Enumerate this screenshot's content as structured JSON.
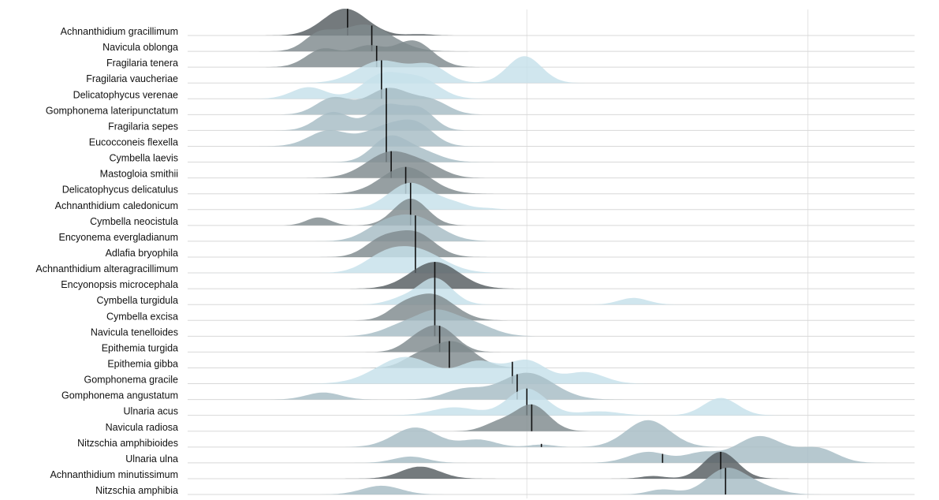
{
  "colors": {
    "light": "#c6e0ea",
    "mid": "#a6bcc4",
    "dark": "#7f8a8e",
    "darkest": "#555d60",
    "median": "#111111",
    "gridline": "#e3e3e3",
    "baseline": "#d8d8d8"
  },
  "chart_data": {
    "type": "ridgeline",
    "title": "",
    "xlabel": "",
    "ylabel": "",
    "grid": true,
    "x_gridlines": [
      70,
      128
    ],
    "xlim": [
      0,
      150
    ],
    "density_notation": "each series lists kernel density components as [center, width, relative height] on the shared x axis",
    "series": [
      {
        "name": "Achnanthidium gracillimum",
        "tone": "darkest",
        "median": 33,
        "components": [
          [
            32.5,
            4.5,
            1.0
          ],
          [
            48,
            2.5,
            0.05
          ]
        ]
      },
      {
        "name": "Navicula oblonga",
        "tone": "dark",
        "median": 38,
        "components": [
          [
            36.5,
            5.5,
            0.85
          ],
          [
            27,
            3.0,
            0.45
          ]
        ]
      },
      {
        "name": "Fragilaria tenera",
        "tone": "dark",
        "median": 39,
        "components": [
          [
            28,
            3.5,
            0.55
          ],
          [
            37,
            3.5,
            0.6
          ],
          [
            46.5,
            4.0,
            0.8
          ]
        ]
      },
      {
        "name": "Fragilaria vaucheriae",
        "tone": "light",
        "median": 40,
        "components": [
          [
            40,
            5.0,
            0.75
          ],
          [
            50,
            3.5,
            0.55
          ],
          [
            69.5,
            3.5,
            0.9
          ]
        ]
      },
      {
        "name": "Delicatophycus verenae",
        "tone": "light",
        "median": 40,
        "components": [
          [
            25,
            3.5,
            0.45
          ],
          [
            40,
            4.0,
            0.9
          ],
          [
            48,
            4.0,
            0.75
          ]
        ]
      },
      {
        "name": "Gomphonema lateripunctatum",
        "tone": "mid",
        "median": 41,
        "components": [
          [
            30,
            3.5,
            0.6
          ],
          [
            41.5,
            4.5,
            0.95
          ],
          [
            50.5,
            3.5,
            0.45
          ]
        ]
      },
      {
        "name": "Fragilaria sepes",
        "tone": "mid",
        "median": 41,
        "components": [
          [
            30,
            3.5,
            0.55
          ],
          [
            41,
            3.5,
            0.75
          ],
          [
            48,
            3.0,
            0.6
          ]
        ]
      },
      {
        "name": "Eucocconeis flexella",
        "tone": "mid",
        "median": 41,
        "components": [
          [
            29,
            4.0,
            0.65
          ],
          [
            41,
            4.5,
            0.8
          ],
          [
            47.5,
            3.5,
            0.75
          ]
        ]
      },
      {
        "name": "Cymbella laevis",
        "tone": "mid",
        "median": 41,
        "components": [
          [
            41.5,
            3.5,
            1.0
          ],
          [
            48,
            4.0,
            0.45
          ]
        ]
      },
      {
        "name": "Mastogloia smithii",
        "tone": "dark",
        "median": 42,
        "components": [
          [
            42,
            5.0,
            1.0
          ],
          [
            50,
            3.5,
            0.3
          ]
        ]
      },
      {
        "name": "Delicatophycus delicatulus",
        "tone": "dark",
        "median": 45,
        "components": [
          [
            45,
            5.0,
            1.0
          ]
        ]
      },
      {
        "name": "Achnanthidium caledonicum",
        "tone": "light",
        "median": 46,
        "components": [
          [
            46,
            4.5,
            1.0
          ],
          [
            55,
            3.0,
            0.2
          ],
          [
            62,
            2.0,
            0.05
          ]
        ]
      },
      {
        "name": "Cymbella neocistula",
        "tone": "dark",
        "median": 46,
        "components": [
          [
            46,
            3.5,
            1.0
          ],
          [
            27,
            2.5,
            0.3
          ]
        ]
      },
      {
        "name": "Encyonema evergladianum",
        "tone": "mid",
        "median": 47,
        "components": [
          [
            47,
            5.0,
            1.0
          ],
          [
            40,
            4.0,
            0.5
          ]
        ]
      },
      {
        "name": "Adlafia bryophila",
        "tone": "dark",
        "median": 47,
        "components": [
          [
            47,
            4.0,
            0.95
          ],
          [
            40,
            3.5,
            0.65
          ]
        ]
      },
      {
        "name": "Achnanthidium alteragracillimum",
        "tone": "light",
        "median": 47,
        "components": [
          [
            47,
            5.5,
            0.95
          ],
          [
            40,
            4.0,
            0.45
          ]
        ]
      },
      {
        "name": "Encyonopsis microcephala",
        "tone": "darkest",
        "median": 51,
        "components": [
          [
            51,
            5.0,
            1.0
          ]
        ]
      },
      {
        "name": "Cymbella turgidula",
        "tone": "light",
        "median": 51,
        "components": [
          [
            51,
            3.5,
            1.0
          ],
          [
            44,
            3.0,
            0.2
          ],
          [
            92,
            3.0,
            0.25
          ]
        ]
      },
      {
        "name": "Cymbella excisa",
        "tone": "dark",
        "median": 51,
        "components": [
          [
            50.5,
            4.5,
            1.0
          ],
          [
            44,
            3.0,
            0.35
          ]
        ]
      },
      {
        "name": "Navicula tenelloides",
        "tone": "mid",
        "median": 51,
        "components": [
          [
            45.5,
            4.5,
            0.8
          ],
          [
            51.5,
            3.5,
            1.0
          ],
          [
            58,
            4.5,
            0.85
          ]
        ]
      },
      {
        "name": "Epithemia turgida",
        "tone": "dark",
        "median": 52,
        "components": [
          [
            52,
            3.5,
            1.0
          ],
          [
            47,
            3.0,
            0.4
          ]
        ]
      },
      {
        "name": "Epithemia gibba",
        "tone": "dark",
        "median": 54,
        "components": [
          [
            54.5,
            4.5,
            1.0
          ],
          [
            47,
            3.0,
            0.3
          ]
        ]
      },
      {
        "name": "Gomphonema gracile",
        "tone": "light",
        "median": 67,
        "components": [
          [
            45,
            6.0,
            0.7
          ],
          [
            60,
            4.0,
            0.55
          ],
          [
            70,
            4.0,
            0.6
          ],
          [
            82,
            4.0,
            0.3
          ]
        ]
      },
      {
        "name": "Gomphonema angustatum",
        "tone": "mid",
        "median": 68,
        "components": [
          [
            28,
            3.5,
            0.25
          ],
          [
            70,
            5.5,
            0.95
          ],
          [
            57,
            4.0,
            0.35
          ]
        ]
      },
      {
        "name": "Ulnaria acus",
        "tone": "light",
        "median": 70,
        "components": [
          [
            70,
            4.0,
            1.0
          ],
          [
            55,
            4.5,
            0.3
          ],
          [
            110,
            3.5,
            0.65
          ],
          [
            85,
            4.0,
            0.15
          ]
        ]
      },
      {
        "name": "Navicula radiosa",
        "tone": "dark",
        "median": 71,
        "components": [
          [
            71,
            3.5,
            1.0
          ],
          [
            64,
            3.0,
            0.3
          ]
        ]
      },
      {
        "name": "Nitzschia amphibioides",
        "tone": "mid",
        "median": 73,
        "components": [
          [
            47,
            4.5,
            0.4
          ],
          [
            60,
            3.5,
            0.15
          ],
          [
            73,
            2.5,
            0.05
          ],
          [
            95,
            4.5,
            0.55
          ]
        ]
      },
      {
        "name": "Ulnaria ulna",
        "tone": "mid",
        "median": 98,
        "components": [
          [
            46,
            3.5,
            0.2
          ],
          [
            95,
            4.0,
            0.35
          ],
          [
            106,
            3.5,
            0.3
          ],
          [
            118,
            5.0,
            0.85
          ],
          [
            130,
            4.0,
            0.45
          ]
        ]
      },
      {
        "name": "Achnanthidium minutissimum",
        "tone": "darkest",
        "median": 110,
        "components": [
          [
            110,
            3.5,
            1.0
          ],
          [
            48,
            4.0,
            0.45
          ],
          [
            96,
            2.5,
            0.1
          ]
        ]
      },
      {
        "name": "Nitzschia amphibia",
        "tone": "mid",
        "median": 111,
        "components": [
          [
            40,
            4.0,
            0.35
          ],
          [
            111,
            4.0,
            1.0
          ],
          [
            98,
            3.0,
            0.2
          ],
          [
            118,
            4.0,
            0.3
          ]
        ]
      }
    ]
  }
}
